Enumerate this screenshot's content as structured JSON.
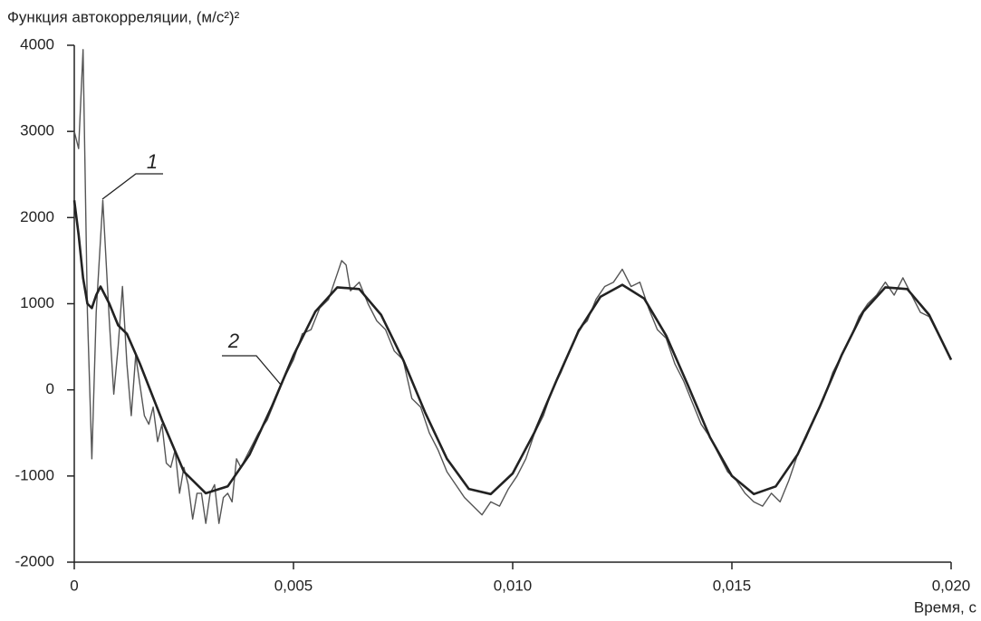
{
  "chart_data": {
    "type": "line",
    "title": "Функция автокорреляции, (м/с²)²",
    "x_label": "Время, с",
    "xlim": [
      0,
      0.02
    ],
    "xticks": [
      0,
      {
        "value": 0.005,
        "label": "0,005"
      },
      {
        "value": 0.01,
        "label": "0,010"
      },
      {
        "value": 0.015,
        "label": "0,015"
      },
      {
        "value": 0.02,
        "label": "0,020"
      }
    ],
    "ylim": [
      -2000,
      4000
    ],
    "yticks": [
      -2000,
      -1000,
      0,
      1000,
      2000,
      3000,
      4000
    ],
    "series": [
      {
        "name": "1",
        "color": "#555555",
        "x": [
          0,
          0.0001,
          0.0002,
          0.0003,
          0.0004,
          0.0005,
          0.00065,
          0.0008,
          0.0009,
          0.001,
          0.0011,
          0.0012,
          0.0013,
          0.0014,
          0.0015,
          0.0016,
          0.0017,
          0.0018,
          0.0019,
          0.002,
          0.0021,
          0.0022,
          0.0023,
          0.0024,
          0.0025,
          0.0026,
          0.0027,
          0.0028,
          0.0029,
          0.003,
          0.0031,
          0.0032,
          0.0033,
          0.0034,
          0.0035,
          0.0036,
          0.0037,
          0.0038,
          0.004,
          0.0042,
          0.0044,
          0.0046,
          0.0048,
          0.005,
          0.0052,
          0.0054,
          0.0056,
          0.0058,
          0.006,
          0.0061,
          0.0062,
          0.0063,
          0.0065,
          0.0067,
          0.0069,
          0.0071,
          0.0073,
          0.0075,
          0.0077,
          0.0079,
          0.0081,
          0.0083,
          0.0085,
          0.0087,
          0.0089,
          0.0091,
          0.0093,
          0.0095,
          0.0097,
          0.0099,
          0.0101,
          0.0103,
          0.0105,
          0.0107,
          0.0109,
          0.0111,
          0.0113,
          0.0115,
          0.0117,
          0.0119,
          0.0121,
          0.0123,
          0.0125,
          0.0127,
          0.0129,
          0.0131,
          0.0133,
          0.0135,
          0.0137,
          0.0139,
          0.0141,
          0.0143,
          0.0145,
          0.0147,
          0.0149,
          0.0151,
          0.0153,
          0.0155,
          0.0157,
          0.0159,
          0.0161,
          0.0163,
          0.0165,
          0.0167,
          0.0169,
          0.0171,
          0.0173,
          0.0175,
          0.0177,
          0.0179,
          0.0181,
          0.0183,
          0.0185,
          0.0187,
          0.0189,
          0.0191,
          0.0193,
          0.0195,
          0.0197,
          0.0199,
          0.02
        ],
        "values": [
          3000,
          2800,
          3950,
          900,
          -800,
          900,
          2200,
          800,
          -50,
          500,
          1200,
          300,
          -300,
          400,
          50,
          -300,
          -400,
          -200,
          -600,
          -400,
          -850,
          -900,
          -700,
          -1200,
          -900,
          -1100,
          -1500,
          -1200,
          -1200,
          -1550,
          -1200,
          -1100,
          -1550,
          -1250,
          -1200,
          -1300,
          -800,
          -900,
          -700,
          -500,
          -350,
          -100,
          150,
          350,
          650,
          700,
          950,
          1050,
          1350,
          1500,
          1450,
          1150,
          1250,
          1000,
          800,
          700,
          450,
          350,
          -100,
          -200,
          -500,
          -700,
          -950,
          -1100,
          -1250,
          -1350,
          -1450,
          -1300,
          -1350,
          -1150,
          -1000,
          -800,
          -500,
          -300,
          0,
          200,
          450,
          700,
          800,
          1050,
          1200,
          1250,
          1400,
          1200,
          1250,
          950,
          700,
          600,
          300,
          100,
          -150,
          -400,
          -550,
          -750,
          -950,
          -1050,
          -1200,
          -1300,
          -1350,
          -1200,
          -1300,
          -1050,
          -750,
          -550,
          -300,
          -100,
          200,
          400,
          600,
          850,
          1000,
          1100,
          1250,
          1100,
          1300,
          1100,
          900,
          850,
          650,
          450,
          350
        ]
      },
      {
        "name": "2",
        "color": "#222222",
        "x": [
          0,
          0.0001,
          0.0002,
          0.0003,
          0.0004,
          0.0005,
          0.0006,
          0.0008,
          0.001,
          0.0012,
          0.0015,
          0.002,
          0.0025,
          0.003,
          0.0035,
          0.004,
          0.0045,
          0.005,
          0.0055,
          0.006,
          0.0065,
          0.007,
          0.0075,
          0.008,
          0.0085,
          0.009,
          0.0095,
          0.01,
          0.0105,
          0.011,
          0.0115,
          0.012,
          0.0125,
          0.013,
          0.0135,
          0.014,
          0.0145,
          0.015,
          0.0155,
          0.016,
          0.0165,
          0.017,
          0.0175,
          0.018,
          0.0185,
          0.019,
          0.0195,
          0.02
        ],
        "values": [
          2200,
          1800,
          1300,
          1000,
          950,
          1100,
          1200,
          1000,
          750,
          650,
          300,
          -350,
          -950,
          -1200,
          -1120,
          -750,
          -200,
          400,
          910,
          1190,
          1170,
          870,
          350,
          -260,
          -800,
          -1150,
          -1210,
          -970,
          -490,
          110,
          680,
          1080,
          1220,
          1060,
          630,
          50,
          -550,
          -1000,
          -1210,
          -1120,
          -750,
          -200,
          400,
          910,
          1190,
          1170,
          870,
          350
        ]
      }
    ]
  }
}
